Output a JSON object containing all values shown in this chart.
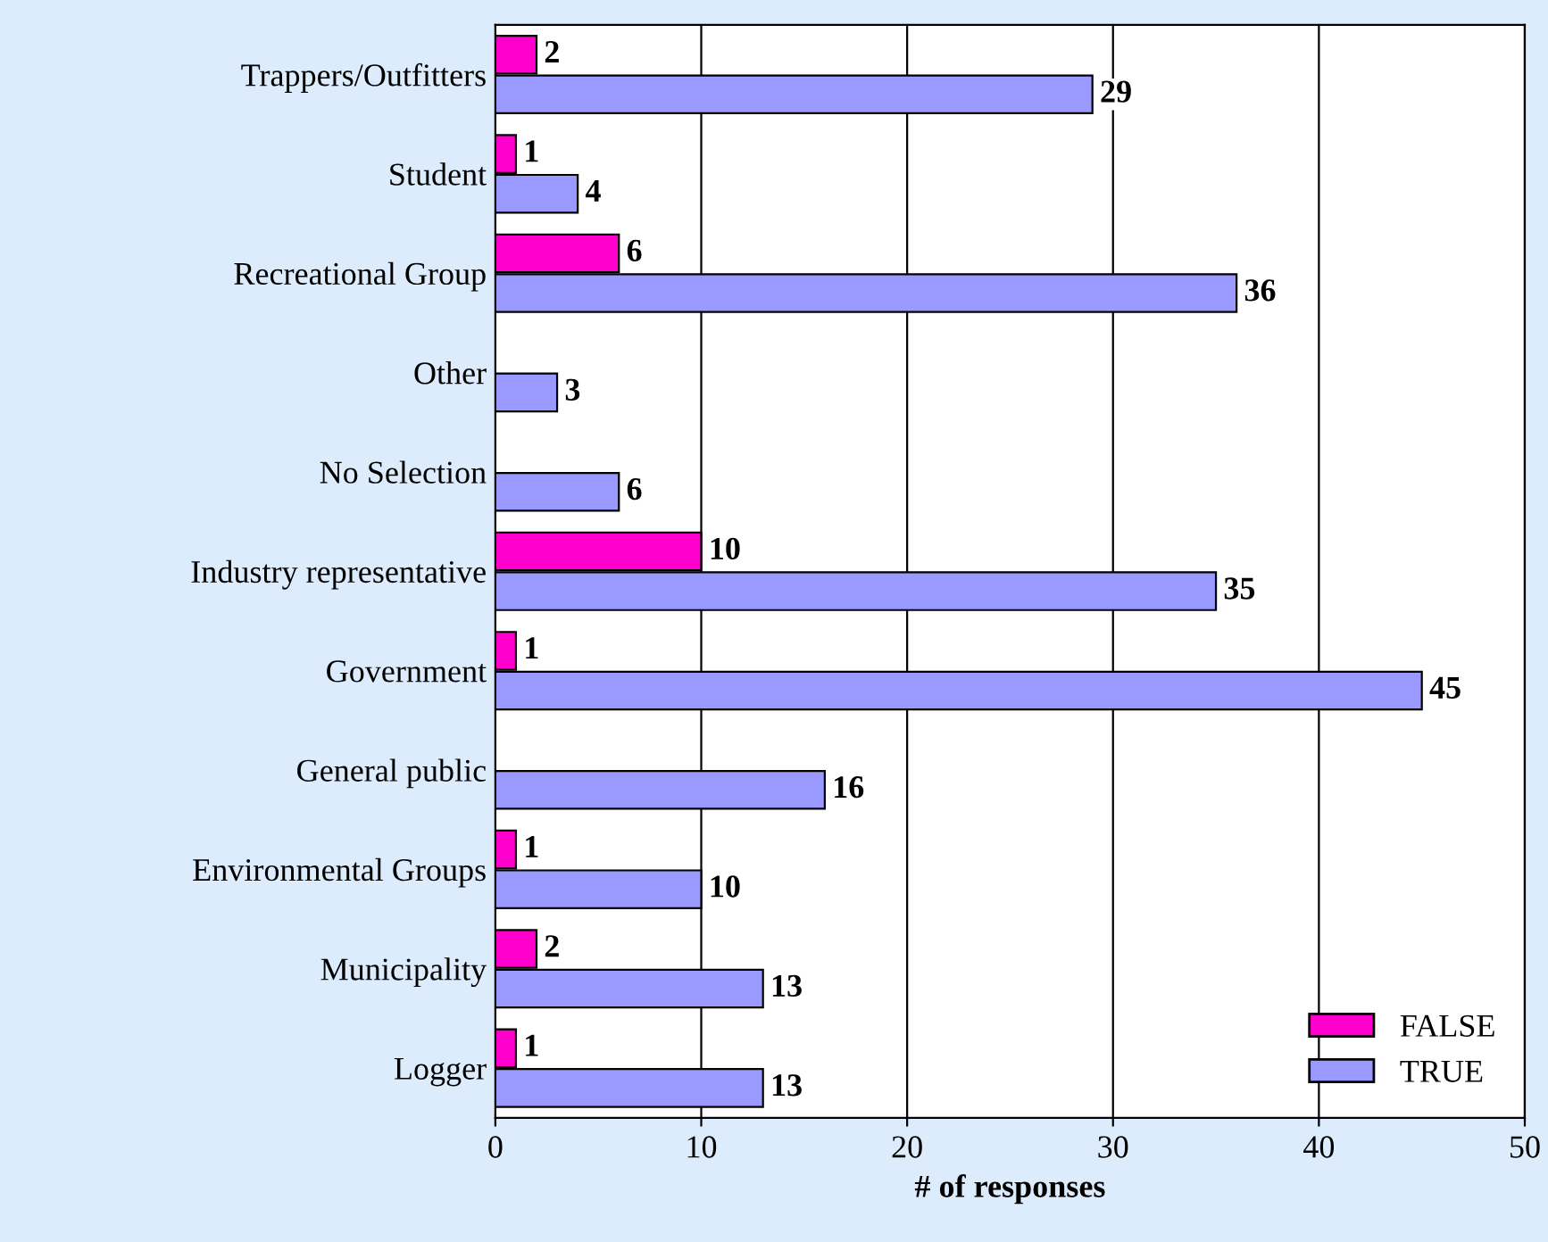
{
  "chart_data": {
    "type": "bar",
    "orientation": "horizontal",
    "xlabel": "# of responses",
    "categories": [
      "Trappers/Outfitters",
      "Student",
      "Recreational Group",
      "Other",
      "No Selection",
      "Industry representative",
      "Government",
      "General public",
      "Environmental Groups",
      "Municipality",
      "Logger"
    ],
    "series": [
      {
        "name": "FALSE",
        "color": "#ff00cc",
        "values": [
          2,
          1,
          6,
          null,
          null,
          10,
          1,
          null,
          1,
          2,
          1
        ]
      },
      {
        "name": "TRUE",
        "color": "#9999ff",
        "values": [
          29,
          4,
          36,
          3,
          6,
          35,
          45,
          16,
          10,
          13,
          13
        ]
      }
    ],
    "xlim": [
      0,
      50
    ],
    "xticks": [
      0,
      10,
      20,
      30,
      40,
      50
    ],
    "grid": "x",
    "legend": "bottom right",
    "data_labels": true
  }
}
